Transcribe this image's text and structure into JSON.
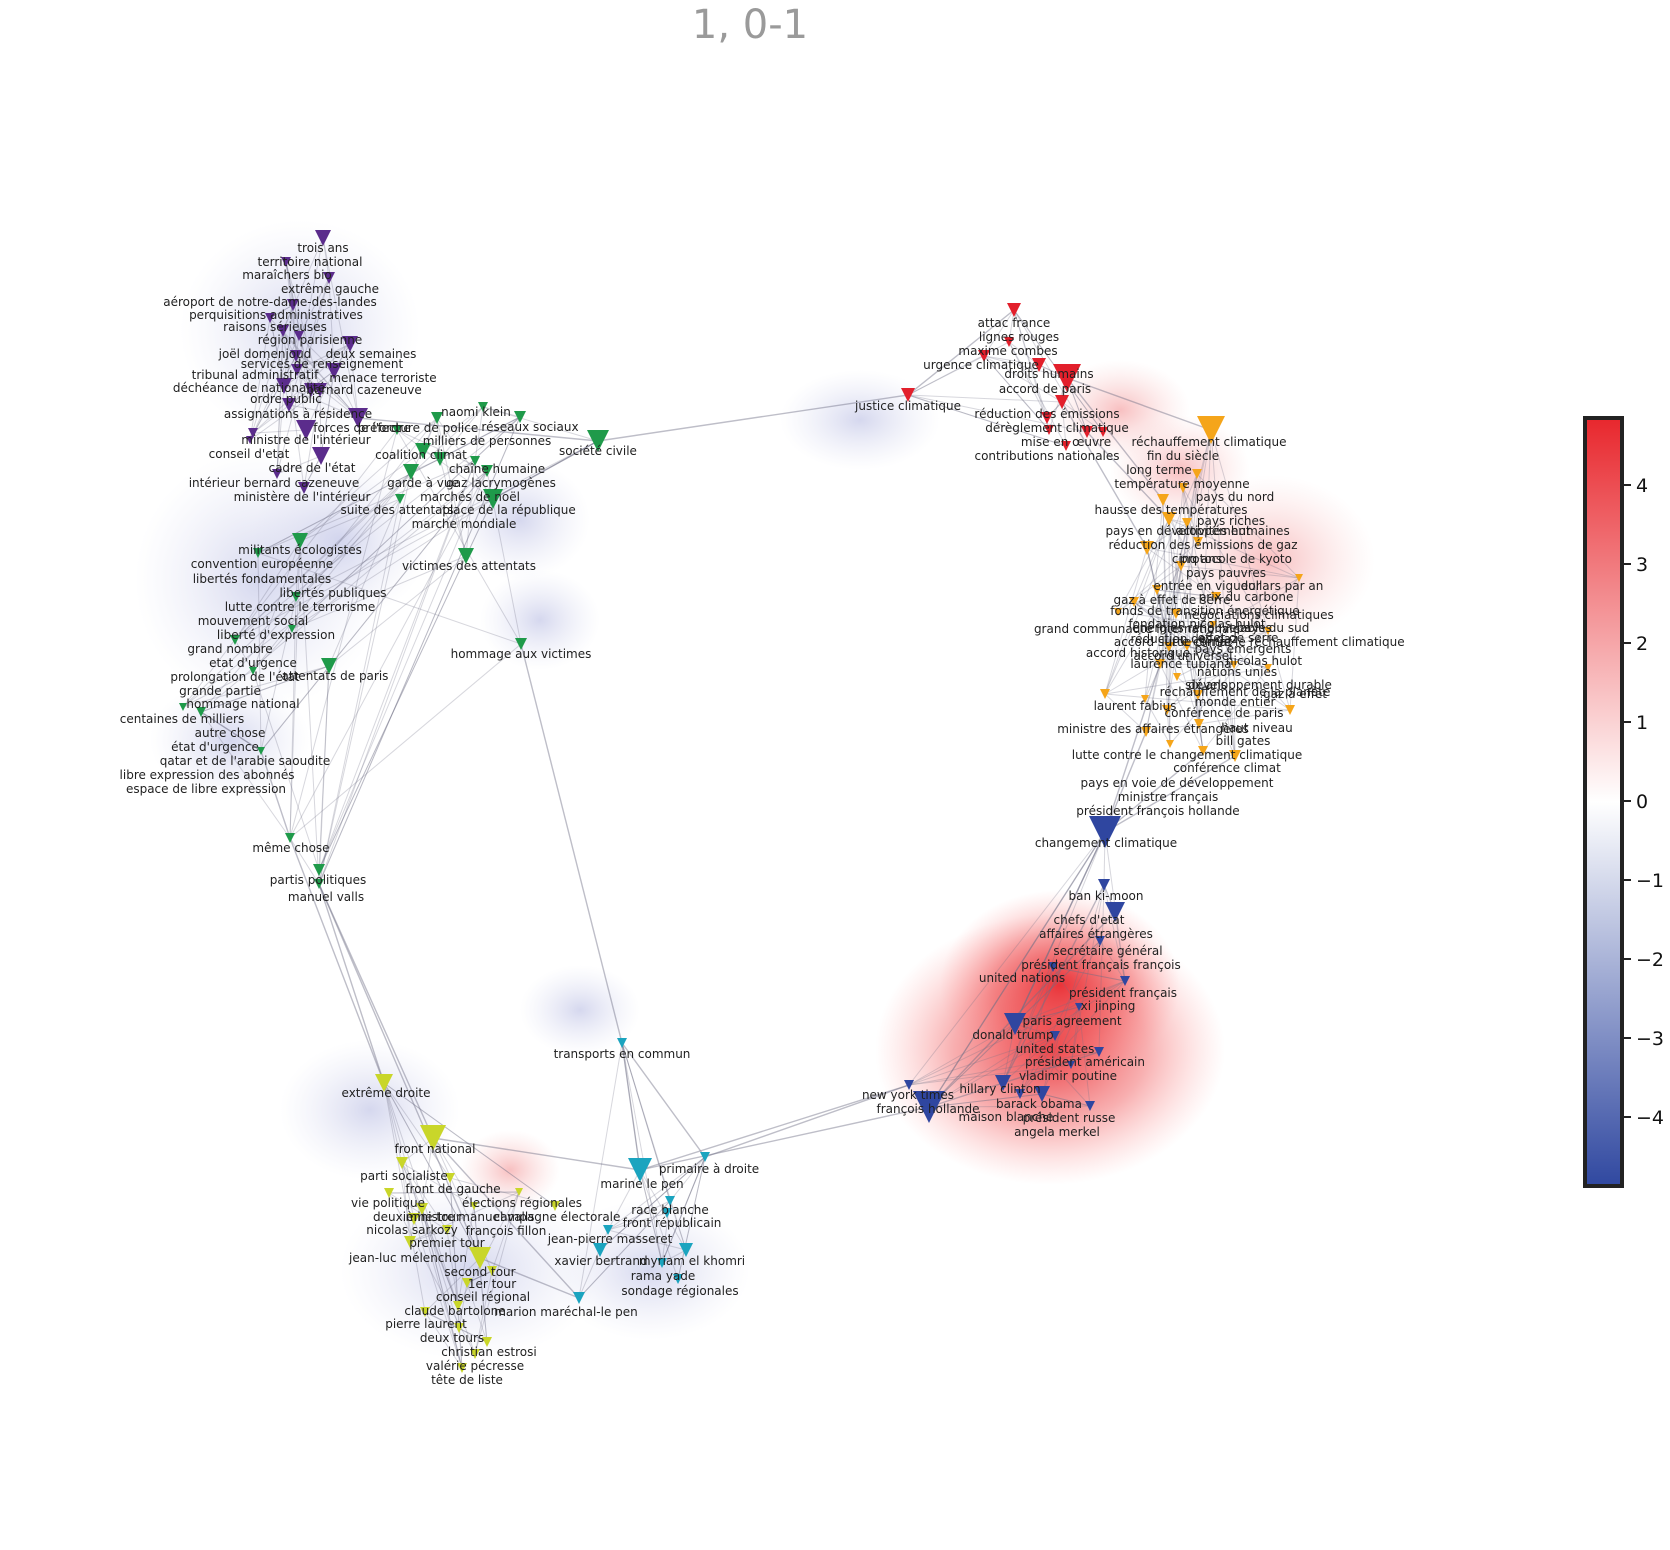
{
  "title": "1, 0-1",
  "colorbar": {
    "ticks": [
      "4",
      "3",
      "2",
      "1",
      "0",
      "−1",
      "−2",
      "−3",
      "−4"
    ],
    "colors": {
      "top": "#e8272d",
      "mid": "#ffffff",
      "bottom": "#3048a0"
    }
  },
  "clusters": {
    "purple": "#5b2c8c",
    "green": "#1f9a4a",
    "red": "#e21f2b",
    "orange": "#f5a51a",
    "blue": "#2f46a0",
    "lime": "#c9d62a",
    "teal": "#1ba4bf"
  },
  "labels": {
    "purple": [
      "trois ans",
      "territoire national",
      "maraîchers bio",
      "extrême gauche",
      "aéroport de notre-dame-des-landes",
      "perquisitions administratives",
      "raisons sérieuses",
      "région parisienne",
      "joël domenjoud",
      "deux semaines",
      "services de renseignement",
      "tribunal administratif",
      "menace terroriste",
      "déchéance de nationalité",
      "bernard cazeneuve",
      "ordre public",
      "assignations à résidence",
      "forces de l'ordre",
      "ministre de l'intérieur",
      "conseil d'etat",
      "cadre de l'état",
      "intérieur bernard cazeneuve",
      "ministère de l'intérieur"
    ],
    "green": [
      "naomi klein",
      "préfecture de police",
      "réseaux sociaux",
      "milliers de personnes",
      "coalition climat",
      "chaîne humaine",
      "garde à vue",
      "gaz lacrymogènes",
      "marchés de noël",
      "place de la république",
      "suite des attentats",
      "marche mondiale",
      "société civile",
      "victimes des attentats",
      "hommage aux victimes",
      "militants écologistes",
      "convention européenne",
      "libertés fondamentales",
      "libertés publiques",
      "lutte contre le terrorisme",
      "mouvement social",
      "liberté d'expression",
      "grand nombre",
      "etat d'urgence",
      "prolongation de l'état",
      "attentats de paris",
      "grande partie",
      "hommage national",
      "centaines de milliers",
      "autre chose",
      "état d'urgence",
      "qatar et de l'arabie saoudite",
      "libre expression des abonnés",
      "espace de libre expression",
      "même chose",
      "partis politiques",
      "manuel valls"
    ],
    "red": [
      "attac france",
      "lignes rouges",
      "maxime combes",
      "urgence climatique",
      "droits humains",
      "accord de paris",
      "justice climatique",
      "réduction des émissions",
      "dérèglement climatique",
      "mise en œuvre",
      "contributions nationales"
    ],
    "orange": [
      "réchauffement climatique",
      "fin du siècle",
      "long terme",
      "température moyenne",
      "pays du nord",
      "hausse des températures",
      "pays riches",
      "pays en développement",
      "activités humaines",
      "réduction des émissions de gaz",
      "protocole de kyoto",
      "cinq ans",
      "pays pauvres",
      "entrée en vigueur",
      "prix du carbone",
      "gaz à effet de serre",
      "dollars par an",
      "fonds de transition énergétique",
      "négociations climatiques",
      "fondation nicolas hulot",
      "énergies renouvelables",
      "pays du sud",
      "réduction des gaz",
      "grand communauté internationale",
      "effet de serre",
      "accord sur le climat",
      "lutte contre le réchauffement climatique",
      "accord historique",
      "pays émergents",
      "accord universel",
      "nicolas hulot",
      "laurence tubiana",
      "nations unies",
      "six ans",
      "développement durable",
      "réchauffement de la planète",
      "gaz à effet",
      "laurent fabius",
      "monde entier",
      "conférence de paris",
      "ministre des affaires étrangères",
      "haut niveau",
      "bill gates",
      "lutte contre le changement climatique",
      "conférence climat",
      "pays en voie de développement",
      "ministre français",
      "président françois hollande"
    ],
    "blue": [
      "changement climatique",
      "ban ki-moon",
      "chefs d'etat",
      "affaires étrangères",
      "secrétaire général",
      "président français françois",
      "united nations",
      "président français",
      "xi jinping",
      "paris agreement",
      "donald trump",
      "united states",
      "président américain",
      "vladimir poutine",
      "new york times",
      "hillary clinton",
      "françois hollande",
      "barack obama",
      "maison blanche",
      "président russe",
      "angela merkel"
    ],
    "lime": [
      "extrême droite",
      "front national",
      "parti socialiste",
      "front de gauche",
      "vie politique",
      "élections régionales",
      "deuxième tour",
      "ministre manuel valls",
      "campagne électorale",
      "nicolas sarkozy",
      "françois fillon",
      "premier tour",
      "jean-luc mélenchon",
      "second tour",
      "1er tour",
      "conseil régional",
      "claude bartolone",
      "pierre laurent",
      "deux tours",
      "christian estrosi",
      "valérie pécresse",
      "tête de liste"
    ],
    "teal": [
      "transports en commun",
      "primaire à droite",
      "marine le pen",
      "race blanche",
      "front républicain",
      "jean-pierre masseret",
      "xavier bertrand",
      "myriam el khomri",
      "rama yade",
      "sondage régionales",
      "marion maréchal-le pen"
    ]
  }
}
